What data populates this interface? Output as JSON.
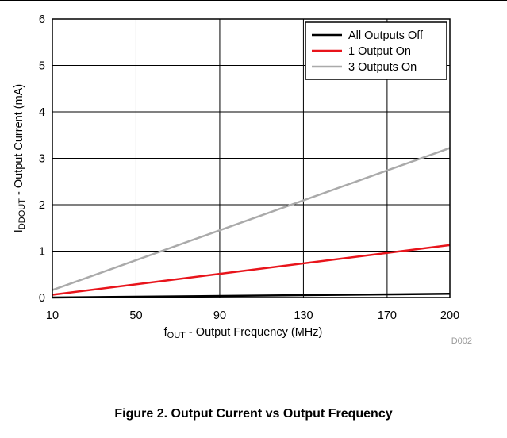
{
  "figure_caption": "Figure 2. Output Current vs Output Frequency",
  "chart_data": {
    "type": "line",
    "title": "",
    "xlabel_main": "f",
    "xlabel_sub": "OUT",
    "xlabel_rest": " - Output Frequency (MHz)",
    "ylabel_main": "I",
    "ylabel_sub": "DDOUT",
    "ylabel_rest": " - Output Current (mA)",
    "xlim": [
      10,
      200
    ],
    "ylim": [
      0,
      6
    ],
    "xticks": [
      10,
      50,
      90,
      130,
      170,
      200
    ],
    "yticks": [
      0,
      1,
      2,
      3,
      4,
      5,
      6
    ],
    "grid": true,
    "legend_position": "top-right",
    "figure_code": "D002",
    "series": [
      {
        "name": "All Outputs Off",
        "color": "#000000",
        "x": [
          10,
          200
        ],
        "y": [
          0.0,
          0.08
        ]
      },
      {
        "name": "1 Output On",
        "color": "#e8141b",
        "x": [
          10,
          200
        ],
        "y": [
          0.06,
          1.13
        ]
      },
      {
        "name": "3 Outputs On",
        "color": "#aaaaaa",
        "x": [
          10,
          200
        ],
        "y": [
          0.16,
          3.22
        ]
      }
    ]
  }
}
